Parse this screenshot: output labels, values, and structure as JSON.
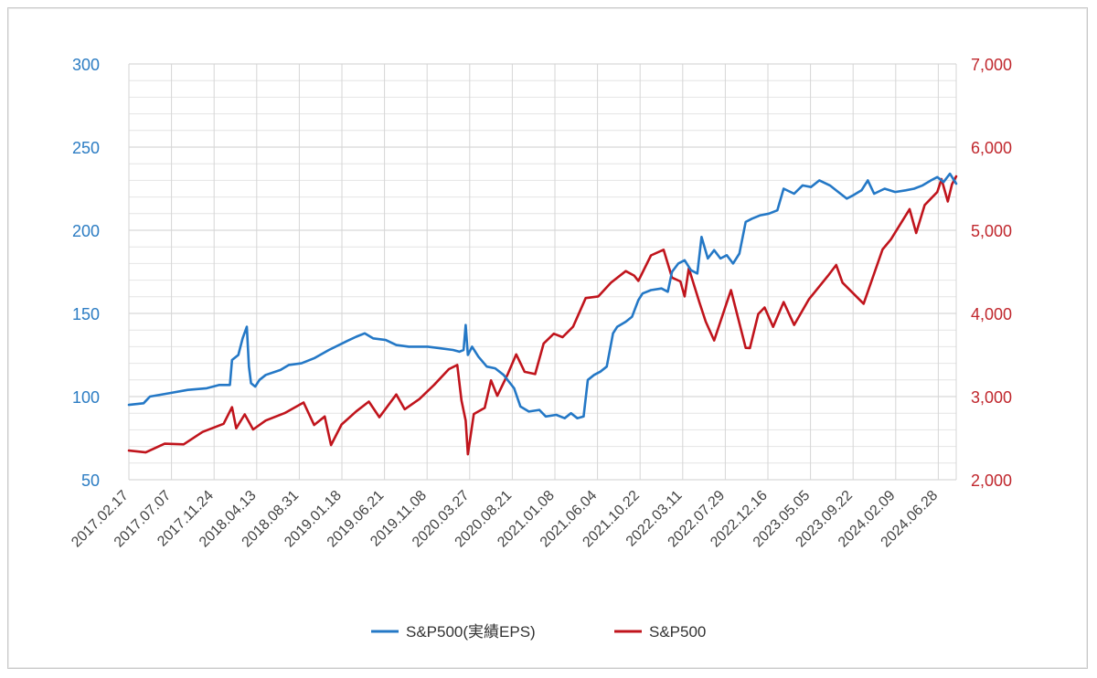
{
  "chart_data": {
    "type": "line",
    "title": "",
    "xlabel": "",
    "ylabel_left": "",
    "ylabel_right": "",
    "grid": true,
    "legend_position": "bottom",
    "x_range": [
      "2017-02-17",
      "2024-08-30"
    ],
    "left_axis": {
      "min": 50,
      "max": 300,
      "ticks": [
        "300",
        "250",
        "200",
        "150",
        "100",
        "50"
      ],
      "color": "#2b7cc3"
    },
    "right_axis": {
      "min": 2000,
      "max": 7000,
      "ticks": [
        "7,000",
        "6,000",
        "5,000",
        "4,000",
        "3,000",
        "2,000"
      ],
      "color": "#c0272d"
    },
    "x_tick_labels": [
      "2017.02.17",
      "2017.07.07",
      "2017.11.24",
      "2018.04.13",
      "2018.08.31",
      "2019.01.18",
      "2019.06.21",
      "2019.11.08",
      "2020.03.27",
      "2020.08.21",
      "2021.01.08",
      "2021.06.04",
      "2021.10.22",
      "2022.03.11",
      "2022.07.29",
      "2022.12.16",
      "2023.05.05",
      "2023.09.22",
      "2024.02.09",
      "2024.06.28"
    ],
    "series": [
      {
        "name": "S&P500(実績EPS)",
        "axis": "left",
        "color": "#2478c6",
        "points": [
          [
            "2017-02-17",
            95
          ],
          [
            "2017-04-07",
            96
          ],
          [
            "2017-04-28",
            100
          ],
          [
            "2017-06-30",
            102
          ],
          [
            "2017-09-01",
            104
          ],
          [
            "2017-11-03",
            105
          ],
          [
            "2017-12-15",
            107
          ],
          [
            "2018-01-19",
            107
          ],
          [
            "2018-01-26",
            122
          ],
          [
            "2018-02-16",
            125
          ],
          [
            "2018-03-02",
            135
          ],
          [
            "2018-03-16",
            142
          ],
          [
            "2018-03-23",
            118
          ],
          [
            "2018-03-30",
            108
          ],
          [
            "2018-04-13",
            106
          ],
          [
            "2018-04-27",
            110
          ],
          [
            "2018-05-18",
            113
          ],
          [
            "2018-07-06",
            116
          ],
          [
            "2018-08-03",
            119
          ],
          [
            "2018-09-14",
            120
          ],
          [
            "2018-10-26",
            123
          ],
          [
            "2018-12-14",
            128
          ],
          [
            "2019-02-08",
            133
          ],
          [
            "2019-03-15",
            136
          ],
          [
            "2019-04-12",
            138
          ],
          [
            "2019-05-10",
            135
          ],
          [
            "2019-06-21",
            134
          ],
          [
            "2019-07-26",
            131
          ],
          [
            "2019-09-06",
            130
          ],
          [
            "2019-11-08",
            130
          ],
          [
            "2019-12-20",
            129
          ],
          [
            "2020-01-31",
            128
          ],
          [
            "2020-02-21",
            127
          ],
          [
            "2020-03-06",
            128
          ],
          [
            "2020-03-13",
            143
          ],
          [
            "2020-03-20",
            125
          ],
          [
            "2020-04-03",
            130
          ],
          [
            "2020-04-24",
            124
          ],
          [
            "2020-05-22",
            118
          ],
          [
            "2020-06-19",
            117
          ],
          [
            "2020-07-17",
            113
          ],
          [
            "2020-08-21",
            105
          ],
          [
            "2020-09-11",
            94
          ],
          [
            "2020-10-09",
            91
          ],
          [
            "2020-11-13",
            92
          ],
          [
            "2020-12-04",
            88
          ],
          [
            "2021-01-08",
            89
          ],
          [
            "2021-02-05",
            87
          ],
          [
            "2021-02-26",
            90
          ],
          [
            "2021-03-19",
            87
          ],
          [
            "2021-04-09",
            88
          ],
          [
            "2021-04-23",
            110
          ],
          [
            "2021-05-14",
            113
          ],
          [
            "2021-06-04",
            115
          ],
          [
            "2021-06-25",
            118
          ],
          [
            "2021-07-16",
            138
          ],
          [
            "2021-07-30",
            142
          ],
          [
            "2021-08-27",
            145
          ],
          [
            "2021-09-17",
            148
          ],
          [
            "2021-10-08",
            158
          ],
          [
            "2021-10-22",
            162
          ],
          [
            "2021-11-19",
            164
          ],
          [
            "2021-12-24",
            165
          ],
          [
            "2022-01-14",
            163
          ],
          [
            "2022-01-28",
            175
          ],
          [
            "2022-02-18",
            180
          ],
          [
            "2022-03-11",
            182
          ],
          [
            "2022-04-01",
            176
          ],
          [
            "2022-04-22",
            174
          ],
          [
            "2022-05-06",
            196
          ],
          [
            "2022-05-27",
            183
          ],
          [
            "2022-06-17",
            188
          ],
          [
            "2022-07-08",
            183
          ],
          [
            "2022-07-29",
            185
          ],
          [
            "2022-08-19",
            180
          ],
          [
            "2022-09-09",
            186
          ],
          [
            "2022-09-30",
            205
          ],
          [
            "2022-10-21",
            207
          ],
          [
            "2022-11-18",
            209
          ],
          [
            "2022-12-16",
            210
          ],
          [
            "2023-01-13",
            212
          ],
          [
            "2023-02-03",
            225
          ],
          [
            "2023-03-10",
            222
          ],
          [
            "2023-04-07",
            227
          ],
          [
            "2023-05-05",
            226
          ],
          [
            "2023-06-02",
            230
          ],
          [
            "2023-07-07",
            227
          ],
          [
            "2023-08-04",
            223
          ],
          [
            "2023-09-01",
            219
          ],
          [
            "2023-09-22",
            221
          ],
          [
            "2023-10-20",
            224
          ],
          [
            "2023-11-10",
            230
          ],
          [
            "2023-12-01",
            222
          ],
          [
            "2024-01-05",
            225
          ],
          [
            "2024-02-09",
            223
          ],
          [
            "2024-03-15",
            224
          ],
          [
            "2024-04-12",
            225
          ],
          [
            "2024-05-10",
            227
          ],
          [
            "2024-06-07",
            230
          ],
          [
            "2024-06-28",
            232
          ],
          [
            "2024-07-19",
            229
          ],
          [
            "2024-08-09",
            234
          ],
          [
            "2024-08-30",
            228
          ]
        ]
      },
      {
        "name": "S&P500",
        "axis": "right",
        "color": "#c0141c",
        "points": [
          [
            "2017-02-17",
            2351
          ],
          [
            "2017-04-14",
            2329
          ],
          [
            "2017-06-16",
            2433
          ],
          [
            "2017-08-18",
            2425
          ],
          [
            "2017-10-20",
            2575
          ],
          [
            "2017-12-29",
            2673
          ],
          [
            "2018-01-26",
            2872
          ],
          [
            "2018-02-09",
            2619
          ],
          [
            "2018-03-09",
            2786
          ],
          [
            "2018-04-06",
            2604
          ],
          [
            "2018-05-18",
            2712
          ],
          [
            "2018-07-20",
            2801
          ],
          [
            "2018-09-21",
            2929
          ],
          [
            "2018-10-26",
            2658
          ],
          [
            "2018-11-30",
            2760
          ],
          [
            "2018-12-21",
            2416
          ],
          [
            "2019-01-25",
            2664
          ],
          [
            "2019-03-15",
            2822
          ],
          [
            "2019-04-26",
            2940
          ],
          [
            "2019-05-31",
            2752
          ],
          [
            "2019-07-26",
            3025
          ],
          [
            "2019-08-23",
            2847
          ],
          [
            "2019-10-11",
            2970
          ],
          [
            "2019-11-29",
            3141
          ],
          [
            "2020-01-17",
            3330
          ],
          [
            "2020-02-14",
            3380
          ],
          [
            "2020-02-28",
            2954
          ],
          [
            "2020-03-13",
            2711
          ],
          [
            "2020-03-20",
            2305
          ],
          [
            "2020-04-09",
            2790
          ],
          [
            "2020-05-15",
            2864
          ],
          [
            "2020-06-05",
            3194
          ],
          [
            "2020-06-26",
            3009
          ],
          [
            "2020-07-31",
            3271
          ],
          [
            "2020-08-28",
            3508
          ],
          [
            "2020-09-25",
            3298
          ],
          [
            "2020-10-30",
            3270
          ],
          [
            "2020-11-27",
            3638
          ],
          [
            "2020-12-31",
            3756
          ],
          [
            "2021-01-29",
            3714
          ],
          [
            "2021-03-05",
            3841
          ],
          [
            "2021-04-16",
            4185
          ],
          [
            "2021-05-28",
            4204
          ],
          [
            "2021-07-09",
            4369
          ],
          [
            "2021-08-27",
            4509
          ],
          [
            "2021-09-24",
            4455
          ],
          [
            "2021-10-08",
            4391
          ],
          [
            "2021-11-19",
            4698
          ],
          [
            "2021-12-31",
            4766
          ],
          [
            "2022-01-28",
            4431
          ],
          [
            "2022-02-25",
            4385
          ],
          [
            "2022-03-11",
            4204
          ],
          [
            "2022-03-25",
            4543
          ],
          [
            "2022-04-29",
            4132
          ],
          [
            "2022-05-20",
            3901
          ],
          [
            "2022-06-17",
            3675
          ],
          [
            "2022-07-29",
            4130
          ],
          [
            "2022-08-12",
            4280
          ],
          [
            "2022-09-30",
            3586
          ],
          [
            "2022-10-14",
            3583
          ],
          [
            "2022-11-11",
            3993
          ],
          [
            "2022-12-02",
            4071
          ],
          [
            "2022-12-30",
            3839
          ],
          [
            "2023-02-03",
            4136
          ],
          [
            "2023-03-10",
            3861
          ],
          [
            "2023-04-28",
            4169
          ],
          [
            "2023-06-30",
            4450
          ],
          [
            "2023-07-28",
            4582
          ],
          [
            "2023-08-18",
            4370
          ],
          [
            "2023-10-27",
            4117
          ],
          [
            "2023-12-29",
            4769
          ],
          [
            "2024-01-26",
            4891
          ],
          [
            "2024-03-28",
            5254
          ],
          [
            "2024-04-19",
            4967
          ],
          [
            "2024-05-17",
            5303
          ],
          [
            "2024-06-28",
            5460
          ],
          [
            "2024-07-12",
            5615
          ],
          [
            "2024-08-02",
            5346
          ],
          [
            "2024-08-16",
            5554
          ],
          [
            "2024-08-30",
            5648
          ]
        ]
      }
    ]
  }
}
